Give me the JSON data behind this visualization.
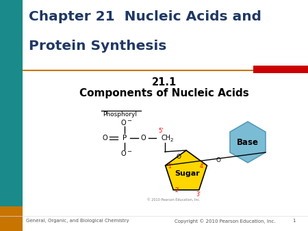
{
  "title_line1": "Chapter 21  Nucleic Acids and",
  "title_line2": "Protein Synthesis",
  "subtitle1": "21.1",
  "subtitle2": "Components of Nucleic Acids",
  "title_color": "#1F3864",
  "bg_color": "#FFFFFF",
  "left_bar_color": "#1a8a8a",
  "left_bar_orange": "#C87400",
  "red_bar_color": "#CC0000",
  "footer_left": "General, Organic, and Biological Chemistry",
  "footer_right": "Copyright © 2010 Pearson Education, Inc.",
  "footer_page": "1",
  "sugar_color": "#FFD700",
  "base_color": "#7BBCD5",
  "phosphoryl_text": "Phosphoryl",
  "diagram_copyright": "© 2010 Pearson Education, Inc."
}
